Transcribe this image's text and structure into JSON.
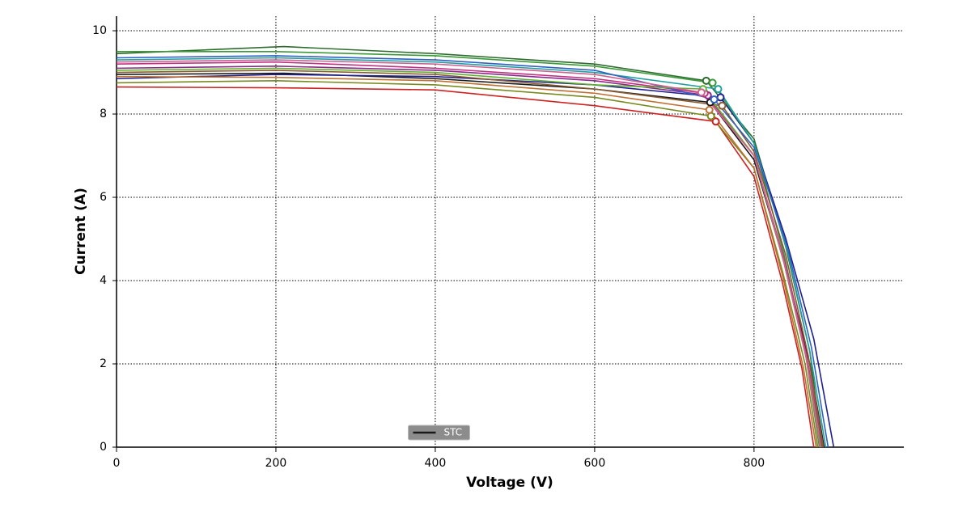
{
  "chart_data": {
    "type": "line",
    "x_label": "Voltage (V)",
    "y_label": "Current (A)",
    "xlim": [
      0,
      988
    ],
    "ylim": [
      0,
      10.35
    ],
    "xticks": [
      0,
      200,
      400,
      600,
      800
    ],
    "yticks": [
      0,
      2,
      4,
      6,
      8,
      10
    ],
    "grid": true,
    "legend": "bottom",
    "series": [
      {
        "name": "STC",
        "color": "#1a1a1a",
        "x": [
          0,
          210,
          400,
          600,
          745,
          800,
          840,
          870,
          888
        ],
        "values": [
          8.95,
          8.98,
          8.85,
          8.6,
          8.28,
          6.9,
          4.3,
          2.0,
          0
        ],
        "mpp": {
          "x": 745,
          "y": 8.28
        }
      },
      {
        "color": "#2e6b2e",
        "x": [
          0,
          210,
          400,
          600,
          740,
          800,
          840,
          870,
          885
        ],
        "values": [
          9.45,
          9.62,
          9.45,
          9.2,
          8.8,
          7.4,
          4.8,
          2.3,
          0
        ],
        "mpp": {
          "x": 740,
          "y": 8.8
        }
      },
      {
        "color": "#1f1f8f",
        "x": [
          0,
          200,
          400,
          600,
          758,
          800,
          840,
          875,
          900
        ],
        "values": [
          8.85,
          8.95,
          8.9,
          8.7,
          8.4,
          7.3,
          5.0,
          2.6,
          0
        ],
        "mpp": {
          "x": 758,
          "y": 8.4
        }
      },
      {
        "color": "#cc2222",
        "x": [
          0,
          200,
          400,
          600,
          752,
          800,
          835,
          860,
          875
        ],
        "values": [
          8.65,
          8.63,
          8.58,
          8.2,
          7.82,
          6.5,
          4.0,
          1.9,
          0
        ],
        "mpp": {
          "x": 752,
          "y": 7.82
        }
      },
      {
        "color": "#3a9a3a",
        "x": [
          0,
          200,
          400,
          600,
          748,
          800,
          838,
          865,
          882
        ],
        "values": [
          9.5,
          9.5,
          9.4,
          9.15,
          8.75,
          7.3,
          4.6,
          2.2,
          0
        ],
        "mpp": {
          "x": 748,
          "y": 8.75
        }
      },
      {
        "color": "#8a2a8a",
        "x": [
          0,
          200,
          400,
          600,
          742,
          800,
          838,
          866,
          884
        ],
        "values": [
          9.1,
          9.15,
          9.05,
          8.8,
          8.45,
          7.0,
          4.4,
          2.1,
          0
        ],
        "mpp": {
          "x": 742,
          "y": 8.45
        }
      },
      {
        "color": "#20a0a0",
        "x": [
          0,
          200,
          400,
          600,
          755,
          800,
          842,
          870,
          890
        ],
        "values": [
          9.3,
          9.35,
          9.25,
          9.0,
          8.6,
          7.3,
          4.7,
          2.3,
          0
        ],
        "mpp": {
          "x": 755,
          "y": 8.6
        }
      },
      {
        "color": "#7a8a20",
        "x": [
          0,
          200,
          400,
          600,
          746,
          800,
          836,
          864,
          880
        ],
        "values": [
          8.75,
          8.8,
          8.7,
          8.4,
          7.95,
          6.7,
          4.2,
          2.0,
          0
        ],
        "mpp": {
          "x": 746,
          "y": 7.95
        }
      },
      {
        "color": "#c03080",
        "x": [
          0,
          200,
          400,
          600,
          738,
          800,
          838,
          866,
          886
        ],
        "values": [
          9.2,
          9.25,
          9.1,
          8.85,
          8.5,
          7.0,
          4.5,
          2.2,
          0
        ],
        "mpp": {
          "x": 738,
          "y": 8.5
        }
      },
      {
        "color": "#8a5a30",
        "x": [
          0,
          200,
          400,
          600,
          760,
          800,
          840,
          868,
          887
        ],
        "values": [
          9.0,
          9.05,
          8.95,
          8.6,
          8.2,
          7.1,
          4.6,
          2.2,
          0
        ],
        "mpp": {
          "x": 760,
          "y": 8.2
        }
      },
      {
        "color": "#3060c0",
        "x": [
          0,
          200,
          400,
          600,
          750,
          800,
          842,
          872,
          893
        ],
        "values": [
          9.35,
          9.4,
          9.3,
          9.05,
          8.35,
          7.2,
          4.8,
          2.4,
          0
        ],
        "mpp": {
          "x": 750,
          "y": 8.35
        }
      },
      {
        "color": "#c07030",
        "x": [
          0,
          200,
          400,
          600,
          744,
          800,
          836,
          862,
          878
        ],
        "values": [
          8.9,
          8.88,
          8.8,
          8.5,
          8.1,
          6.7,
          4.1,
          1.9,
          0
        ],
        "mpp": {
          "x": 744,
          "y": 8.1
        }
      },
      {
        "color": "#60b030",
        "x": [
          0,
          200,
          400,
          600,
          736,
          800,
          838,
          866,
          884
        ],
        "values": [
          9.05,
          9.1,
          9.0,
          8.7,
          8.6,
          7.0,
          4.4,
          2.1,
          0
        ],
        "mpp": {
          "x": 736,
          "y": 8.6
        }
      },
      {
        "color": "#d06090",
        "x": [
          0,
          200,
          400,
          600,
          734,
          800,
          837,
          865,
          883
        ],
        "values": [
          9.25,
          9.3,
          9.2,
          8.95,
          8.52,
          7.0,
          4.5,
          2.2,
          0
        ],
        "mpp": {
          "x": 734,
          "y": 8.52
        }
      }
    ]
  }
}
